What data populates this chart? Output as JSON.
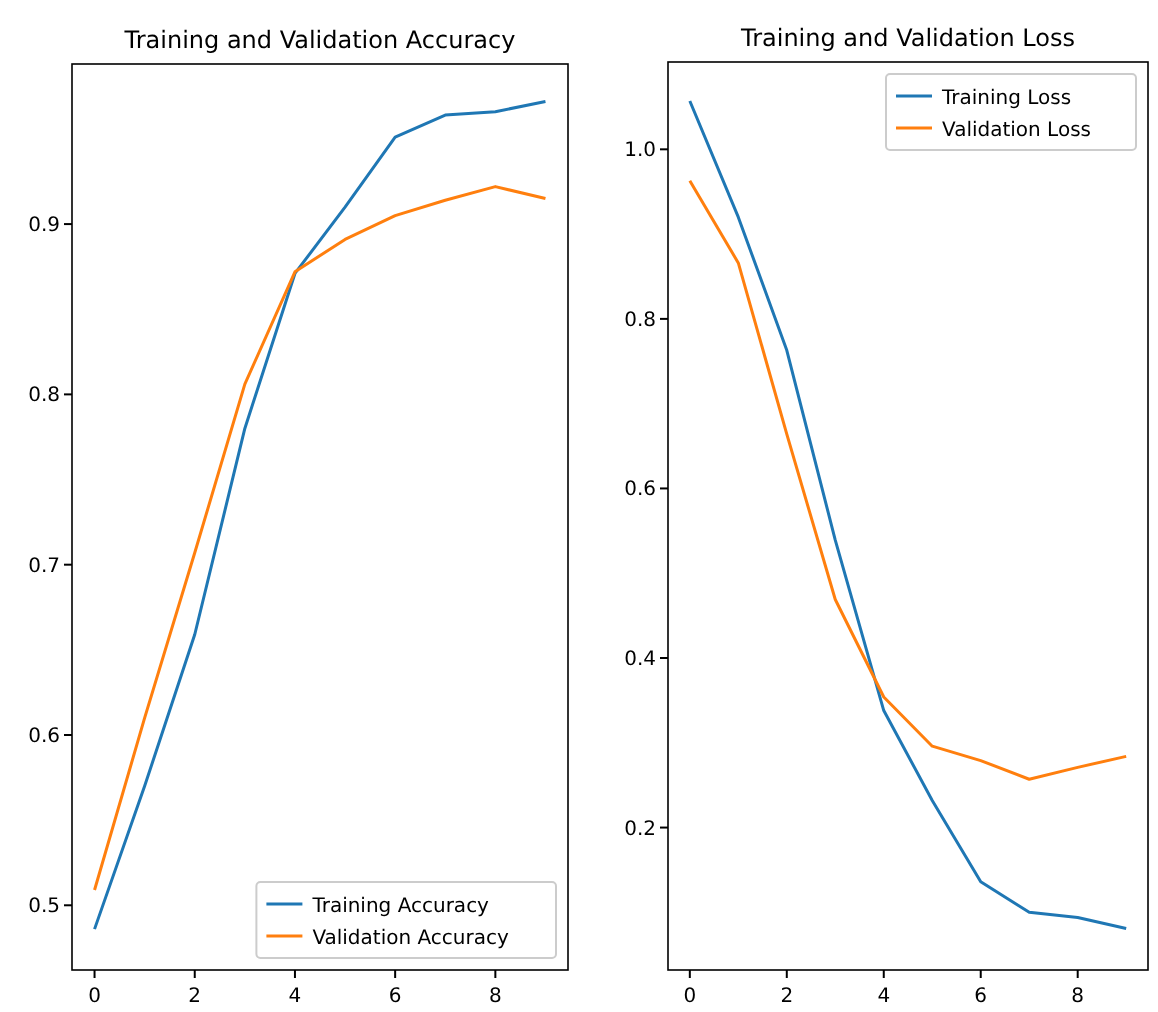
{
  "chart_data": [
    {
      "type": "line",
      "title": "Training and Validation Accuracy",
      "x": [
        0,
        1,
        2,
        3,
        4,
        5,
        6,
        7,
        8,
        9
      ],
      "series": [
        {
          "name": "Training Accuracy",
          "color": "#1f77b4",
          "values": [
            0.486,
            0.57,
            0.659,
            0.78,
            0.871,
            0.91,
            0.951,
            0.964,
            0.966,
            0.972
          ]
        },
        {
          "name": "Validation Accuracy",
          "color": "#ff7f0e",
          "values": [
            0.509,
            0.61,
            0.707,
            0.806,
            0.872,
            0.891,
            0.905,
            0.914,
            0.922,
            0.915
          ]
        }
      ],
      "xlim": [
        -0.45,
        9.45
      ],
      "xticks": [
        0,
        2,
        4,
        6,
        8
      ],
      "ylim": [
        0.462,
        0.994
      ],
      "yticks": [
        0.5,
        0.6,
        0.7,
        0.8,
        0.9
      ],
      "legend": "bottom right",
      "grid": false
    },
    {
      "type": "line",
      "title": "Training and Validation Loss",
      "x": [
        0,
        1,
        2,
        3,
        4,
        5,
        6,
        7,
        8,
        9
      ],
      "series": [
        {
          "name": "Training Loss",
          "color": "#1f77b4",
          "values": [
            1.057,
            0.92,
            0.763,
            0.539,
            0.338,
            0.232,
            0.136,
            0.1,
            0.094,
            0.081
          ]
        },
        {
          "name": "Validation Loss",
          "color": "#ff7f0e",
          "values": [
            0.963,
            0.866,
            0.664,
            0.469,
            0.354,
            0.296,
            0.279,
            0.257,
            0.271,
            0.284
          ]
        }
      ],
      "xlim": [
        -0.45,
        9.45
      ],
      "xticks": [
        0,
        2,
        4,
        6,
        8
      ],
      "ylim": [
        0.032,
        1.103
      ],
      "yticks": [
        {
          "value": 0.2,
          "label": "0.2"
        },
        {
          "value": 0.4,
          "label": "0.4"
        },
        {
          "value": 0.6,
          "label": "0.6"
        },
        {
          "value": 0.8,
          "label": "0.8"
        },
        {
          "value": 1.0,
          "label": "1.0"
        }
      ],
      "legend": "top right",
      "grid": false
    }
  ]
}
